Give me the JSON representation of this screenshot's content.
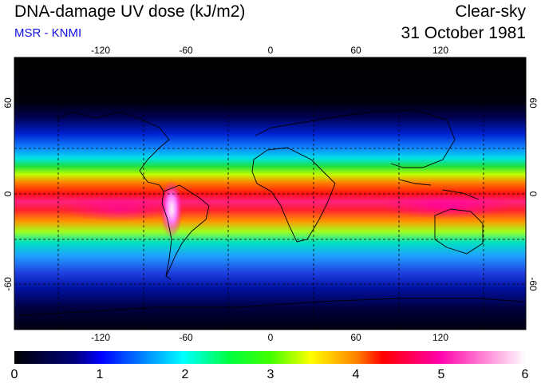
{
  "header": {
    "title": "DNA-damage UV dose (kJ/m2)",
    "subtitle": "MSR - KNMI",
    "sky_condition": "Clear-sky",
    "date": "31 October 1981"
  },
  "map": {
    "projection": "equirectangular",
    "lon_range": [
      -180,
      180
    ],
    "lat_range": [
      -90,
      90
    ],
    "lon_tick_labels": [
      "-120",
      "-60",
      "0",
      "60",
      "120"
    ],
    "lat_tick_labels": [
      "60",
      "0",
      "-60"
    ],
    "gridlines": "dashed every 30 degrees"
  },
  "colorbar": {
    "labels": [
      "0",
      "1",
      "2",
      "3",
      "4",
      "5",
      "6"
    ],
    "colors": [
      "#000000",
      "#0000ff",
      "#00ffff",
      "#00ff00",
      "#ffff00",
      "#ff0000",
      "#ff00aa",
      "#ffffff"
    ]
  }
}
